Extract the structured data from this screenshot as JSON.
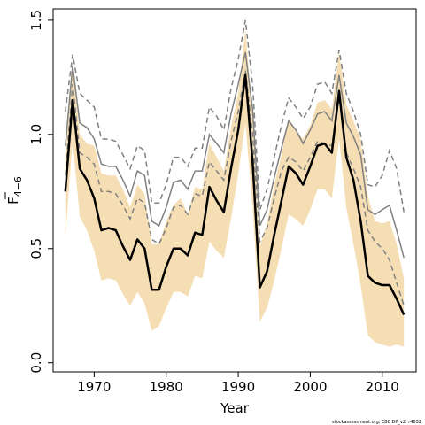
{
  "chart_data": {
    "type": "line",
    "xlabel": "Year",
    "ylabel_main": "F",
    "ylabel_sub": "4−6",
    "xlim": [
      1964.3,
      2014.7
    ],
    "ylim": [
      -0.04,
      1.55
    ],
    "x_ticks": [
      1970,
      1980,
      1990,
      2000,
      2010
    ],
    "x_tick_labels": [
      "1970",
      "1980",
      "1990",
      "2000",
      "2010"
    ],
    "y_ticks": [
      0.0,
      0.5,
      1.0,
      1.5
    ],
    "y_tick_labels": [
      "0.0",
      "0.5",
      "1.0",
      "1.5"
    ],
    "credit": "stockassessment.org, EBC DP_v2, r4832",
    "colors": {
      "band": "#f5deb3",
      "main": "#000000",
      "secondary": "#808080"
    },
    "x": [
      1966,
      1967,
      1968,
      1969,
      1970,
      1971,
      1972,
      1973,
      1974,
      1975,
      1976,
      1977,
      1978,
      1979,
      1980,
      1981,
      1982,
      1983,
      1984,
      1985,
      1986,
      1987,
      1988,
      1989,
      1990,
      1991,
      1992,
      1993,
      1994,
      1995,
      1996,
      1997,
      1998,
      1999,
      2000,
      2001,
      2002,
      2003,
      2004,
      2005,
      2006,
      2007,
      2008,
      2009,
      2010,
      2011,
      2012,
      2013
    ],
    "series": [
      {
        "role": "estimate",
        "values": [
          0.75,
          1.15,
          0.85,
          0.8,
          0.72,
          0.58,
          0.59,
          0.58,
          0.51,
          0.45,
          0.54,
          0.5,
          0.32,
          0.32,
          0.42,
          0.5,
          0.5,
          0.47,
          0.57,
          0.56,
          0.77,
          0.71,
          0.66,
          0.85,
          1.02,
          1.26,
          0.88,
          0.33,
          0.4,
          0.56,
          0.71,
          0.86,
          0.83,
          0.78,
          0.86,
          0.95,
          0.96,
          0.92,
          1.19,
          0.9,
          0.8,
          0.62,
          0.38,
          0.35,
          0.34,
          0.34,
          0.28,
          0.21
        ]
      },
      {
        "role": "band-upper",
        "values": [
          0.92,
          1.3,
          1.0,
          0.96,
          0.95,
          0.83,
          0.82,
          0.82,
          0.76,
          0.68,
          0.78,
          0.74,
          0.52,
          0.52,
          0.62,
          0.69,
          0.72,
          0.65,
          0.77,
          0.76,
          0.96,
          0.9,
          0.84,
          1.03,
          1.18,
          1.46,
          1.07,
          0.51,
          0.61,
          0.78,
          0.91,
          1.07,
          1.02,
          0.98,
          1.04,
          1.14,
          1.15,
          1.11,
          1.36,
          1.13,
          1.06,
          0.98,
          0.73,
          0.62,
          0.61,
          0.62,
          0.52,
          0.37
        ]
      },
      {
        "role": "band-lower",
        "values": [
          0.55,
          0.97,
          0.64,
          0.58,
          0.49,
          0.36,
          0.37,
          0.36,
          0.3,
          0.25,
          0.31,
          0.26,
          0.14,
          0.16,
          0.24,
          0.31,
          0.31,
          0.29,
          0.38,
          0.37,
          0.53,
          0.49,
          0.46,
          0.63,
          0.83,
          1.05,
          0.68,
          0.18,
          0.24,
          0.36,
          0.5,
          0.65,
          0.63,
          0.6,
          0.67,
          0.76,
          0.76,
          0.72,
          0.98,
          0.68,
          0.52,
          0.34,
          0.12,
          0.09,
          0.08,
          0.07,
          0.08,
          0.07
        ]
      },
      {
        "role": "secondary-estimate",
        "values": [
          0.95,
          1.3,
          1.05,
          1.03,
          0.98,
          0.87,
          0.86,
          0.86,
          0.8,
          0.73,
          0.84,
          0.82,
          0.62,
          0.6,
          0.68,
          0.79,
          0.8,
          0.76,
          0.84,
          0.84,
          1.0,
          0.96,
          0.92,
          1.09,
          1.22,
          1.36,
          1.11,
          0.6,
          0.67,
          0.81,
          0.94,
          1.06,
          1.02,
          0.96,
          1.02,
          1.09,
          1.1,
          1.06,
          1.26,
          1.05,
          0.99,
          0.91,
          0.67,
          0.65,
          0.67,
          0.69,
          0.58,
          0.46
        ]
      },
      {
        "role": "secondary-upper",
        "values": [
          1.1,
          1.35,
          1.18,
          1.15,
          1.12,
          0.98,
          0.98,
          0.97,
          0.91,
          0.85,
          0.95,
          0.93,
          0.7,
          0.7,
          0.78,
          0.9,
          0.9,
          0.86,
          0.94,
          0.94,
          1.12,
          1.08,
          1.02,
          1.2,
          1.33,
          1.5,
          1.22,
          0.67,
          0.76,
          0.9,
          1.04,
          1.16,
          1.12,
          1.07,
          1.12,
          1.22,
          1.23,
          1.18,
          1.37,
          1.18,
          1.1,
          1.0,
          0.78,
          0.77,
          0.82,
          0.93,
          0.85,
          0.66
        ]
      },
      {
        "role": "secondary-lower",
        "values": [
          0.82,
          1.22,
          0.92,
          0.9,
          0.87,
          0.75,
          0.75,
          0.74,
          0.69,
          0.63,
          0.72,
          0.7,
          0.54,
          0.52,
          0.59,
          0.68,
          0.69,
          0.65,
          0.74,
          0.73,
          0.88,
          0.84,
          0.8,
          0.97,
          1.1,
          1.28,
          1.0,
          0.53,
          0.59,
          0.72,
          0.84,
          0.9,
          0.88,
          0.84,
          0.9,
          0.97,
          0.96,
          0.95,
          1.16,
          0.92,
          0.85,
          0.77,
          0.58,
          0.53,
          0.5,
          0.45,
          0.35,
          0.25
        ]
      }
    ]
  }
}
